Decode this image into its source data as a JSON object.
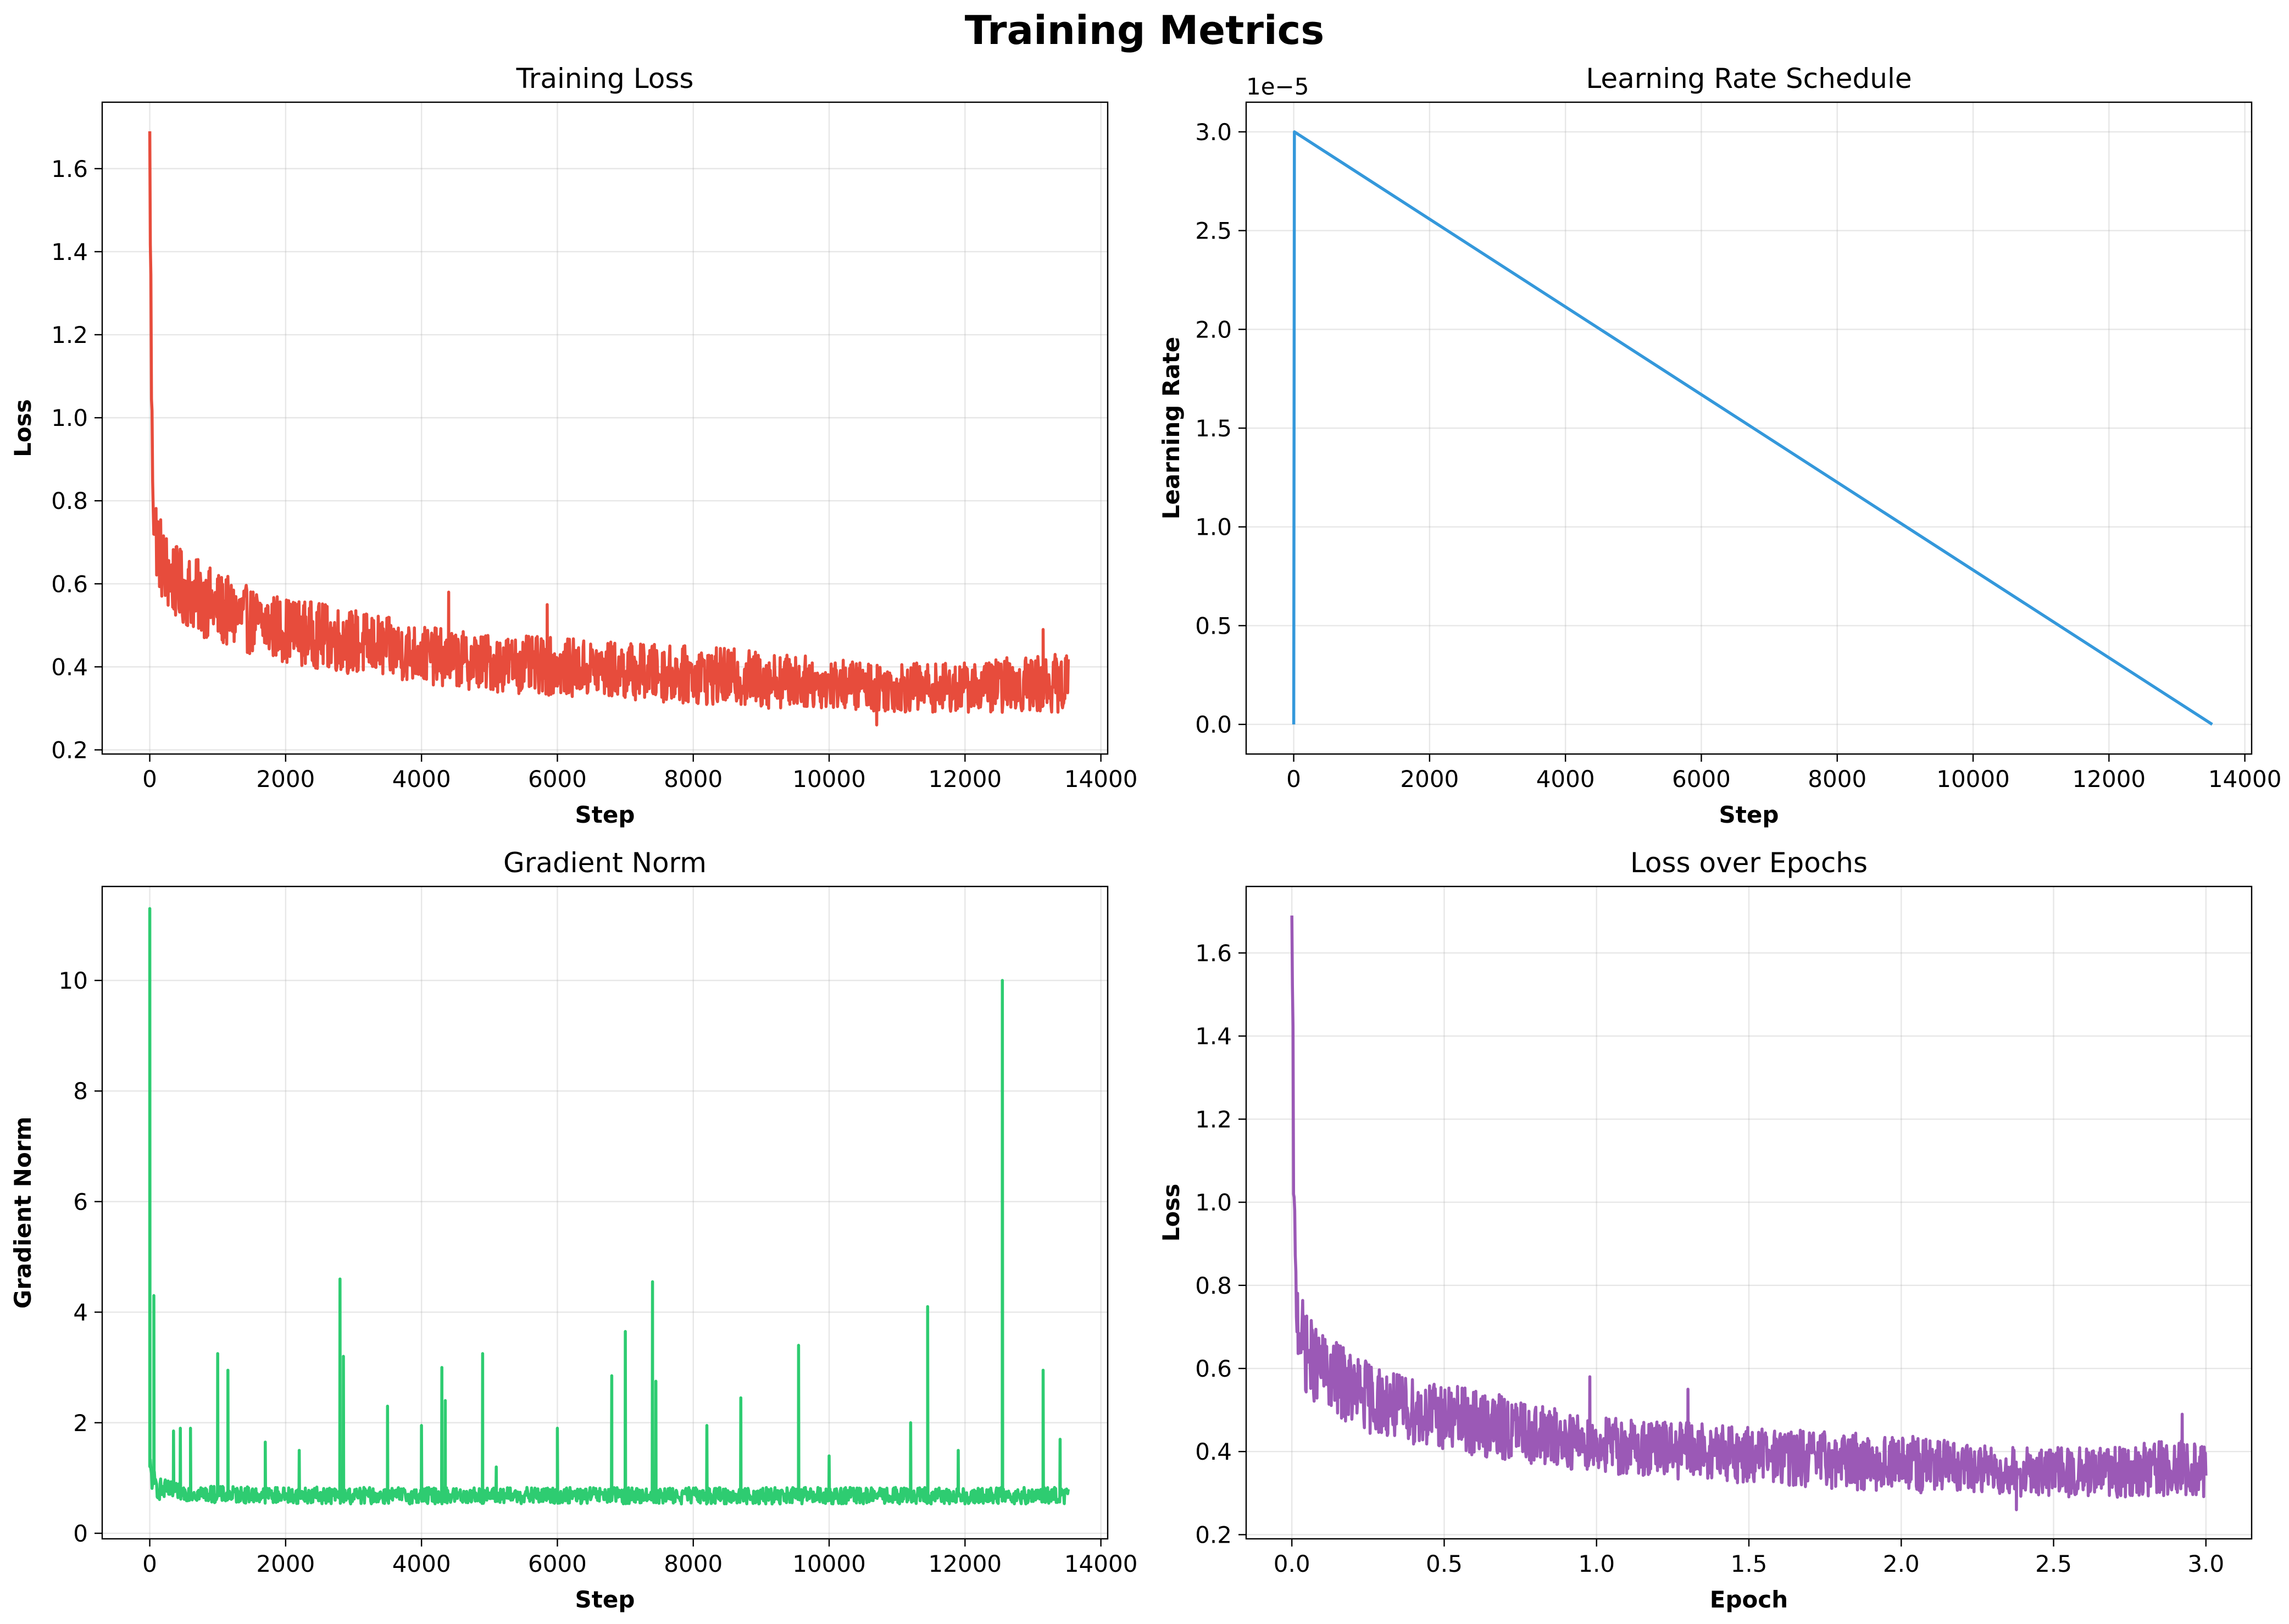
{
  "figure": {
    "suptitle": "Training Metrics"
  },
  "chart_data": [
    {
      "type": "line",
      "title": "Training Loss",
      "xlabel": "Step",
      "ylabel": "Loss",
      "xlim": [
        -700,
        14100
      ],
      "ylim": [
        0.19,
        1.76
      ],
      "xticks": [
        0,
        2000,
        4000,
        6000,
        8000,
        10000,
        12000,
        14000
      ],
      "yticks": [
        0.2,
        0.4,
        0.6,
        0.8,
        1.0,
        1.2,
        1.4,
        1.6
      ],
      "grid": true,
      "color": "#e74c3c",
      "series": [
        {
          "x": [
            0,
            30,
            60,
            100,
            200,
            400,
            700,
            1000,
            1500,
            2000,
            3000,
            4000,
            4400,
            5000,
            6000,
            7000,
            8000,
            9000,
            10000,
            11000,
            12000,
            13000,
            13520
          ],
          "y": [
            1.69,
            0.97,
            0.78,
            0.71,
            0.64,
            0.6,
            0.57,
            0.54,
            0.51,
            0.49,
            0.46,
            0.43,
            0.42,
            0.41,
            0.4,
            0.39,
            0.38,
            0.37,
            0.36,
            0.35,
            0.35,
            0.36,
            0.36
          ],
          "band": [
            0.12,
            0.12,
            0.1,
            0.1,
            0.1,
            0.09,
            0.09,
            0.09,
            0.08,
            0.08,
            0.08,
            0.07,
            0.07,
            0.07,
            0.07,
            0.07,
            0.07,
            0.07,
            0.06,
            0.06,
            0.06,
            0.07,
            0.07
          ],
          "spikes": [
            [
              4400,
              0.58
            ],
            [
              5850,
              0.55
            ],
            [
              10700,
              0.26
            ],
            [
              13150,
              0.49
            ]
          ]
        }
      ]
    },
    {
      "type": "line",
      "title": "Learning Rate Schedule",
      "xlabel": "Step",
      "ylabel": "Learning Rate",
      "offset_label": "1e−5",
      "xlim": [
        -700,
        14100
      ],
      "ylim": [
        -0.15,
        3.15
      ],
      "xticks": [
        0,
        2000,
        4000,
        6000,
        8000,
        10000,
        12000,
        14000
      ],
      "yticks": [
        0.0,
        0.5,
        1.0,
        1.5,
        2.0,
        2.5,
        3.0
      ],
      "ytick_labels": [
        "0.0",
        "0.5",
        "1.0",
        "1.5",
        "2.0",
        "2.5",
        "3.0"
      ],
      "grid": true,
      "color": "#3498db",
      "series": [
        {
          "x": [
            0,
            10,
            13520
          ],
          "y": [
            0.0,
            3.0,
            0.0
          ]
        }
      ]
    },
    {
      "type": "line",
      "title": "Gradient Norm",
      "xlabel": "Step",
      "ylabel": "Gradient Norm",
      "xlim": [
        -700,
        14100
      ],
      "ylim": [
        -0.1,
        11.7
      ],
      "xticks": [
        0,
        2000,
        4000,
        6000,
        8000,
        10000,
        12000,
        14000
      ],
      "yticks": [
        0,
        2,
        4,
        6,
        8,
        10
      ],
      "grid": true,
      "color": "#2ecc71",
      "series": [
        {
          "x": [
            0,
            60,
            150,
            400,
            1000,
            3000,
            6000,
            9000,
            12000,
            13520
          ],
          "y": [
            1.2,
            0.9,
            0.8,
            0.75,
            0.7,
            0.68,
            0.68,
            0.68,
            0.68,
            0.68
          ],
          "band": [
            0.3,
            0.25,
            0.2,
            0.15,
            0.15,
            0.15,
            0.15,
            0.15,
            0.15,
            0.15
          ],
          "spikes": [
            [
              0,
              11.3
            ],
            [
              60,
              4.3
            ],
            [
              350,
              1.85
            ],
            [
              450,
              1.9
            ],
            [
              600,
              1.9
            ],
            [
              1000,
              3.25
            ],
            [
              1150,
              2.95
            ],
            [
              1700,
              1.65
            ],
            [
              2200,
              1.5
            ],
            [
              2800,
              4.6
            ],
            [
              2850,
              3.2
            ],
            [
              3500,
              2.3
            ],
            [
              4000,
              1.95
            ],
            [
              4300,
              3.0
            ],
            [
              4350,
              2.4
            ],
            [
              4900,
              3.25
            ],
            [
              5100,
              1.2
            ],
            [
              6000,
              1.9
            ],
            [
              6800,
              2.85
            ],
            [
              7000,
              3.65
            ],
            [
              7400,
              4.55
            ],
            [
              7450,
              2.75
            ],
            [
              8200,
              1.95
            ],
            [
              8700,
              2.45
            ],
            [
              9550,
              3.4
            ],
            [
              10000,
              1.4
            ],
            [
              11200,
              2.0
            ],
            [
              11450,
              4.1
            ],
            [
              11900,
              1.5
            ],
            [
              12550,
              10.0
            ],
            [
              13150,
              2.95
            ],
            [
              13400,
              1.7
            ]
          ]
        }
      ]
    },
    {
      "type": "line",
      "title": "Loss over Epochs",
      "xlabel": "Epoch",
      "ylabel": "Loss",
      "xlim": [
        -0.15,
        3.15
      ],
      "ylim": [
        0.19,
        1.76
      ],
      "xticks": [
        0.0,
        0.5,
        1.0,
        1.5,
        2.0,
        2.5,
        3.0
      ],
      "xtick_labels": [
        "0.0",
        "0.5",
        "1.0",
        "1.5",
        "2.0",
        "2.5",
        "3.0"
      ],
      "yticks": [
        0.2,
        0.4,
        0.6,
        0.8,
        1.0,
        1.2,
        1.4,
        1.6
      ],
      "grid": true,
      "color": "#9b59b6",
      "series": [
        {
          "x": [
            0,
            0.007,
            0.013,
            0.022,
            0.044,
            0.089,
            0.156,
            0.222,
            0.333,
            0.444,
            0.667,
            0.889,
            0.978,
            1.111,
            1.333,
            1.556,
            1.778,
            2.0,
            2.222,
            2.444,
            2.667,
            2.889,
            3.0
          ],
          "y": [
            1.69,
            0.97,
            0.78,
            0.71,
            0.64,
            0.6,
            0.57,
            0.54,
            0.51,
            0.49,
            0.46,
            0.43,
            0.42,
            0.41,
            0.4,
            0.39,
            0.38,
            0.37,
            0.36,
            0.35,
            0.35,
            0.36,
            0.36
          ],
          "band": [
            0.12,
            0.12,
            0.1,
            0.1,
            0.1,
            0.09,
            0.09,
            0.09,
            0.08,
            0.08,
            0.08,
            0.07,
            0.07,
            0.07,
            0.07,
            0.07,
            0.07,
            0.07,
            0.06,
            0.06,
            0.06,
            0.07,
            0.07
          ],
          "spikes": [
            [
              0.978,
              0.58
            ],
            [
              1.3,
              0.55
            ],
            [
              2.378,
              0.26
            ],
            [
              2.922,
              0.49
            ]
          ]
        }
      ]
    }
  ]
}
